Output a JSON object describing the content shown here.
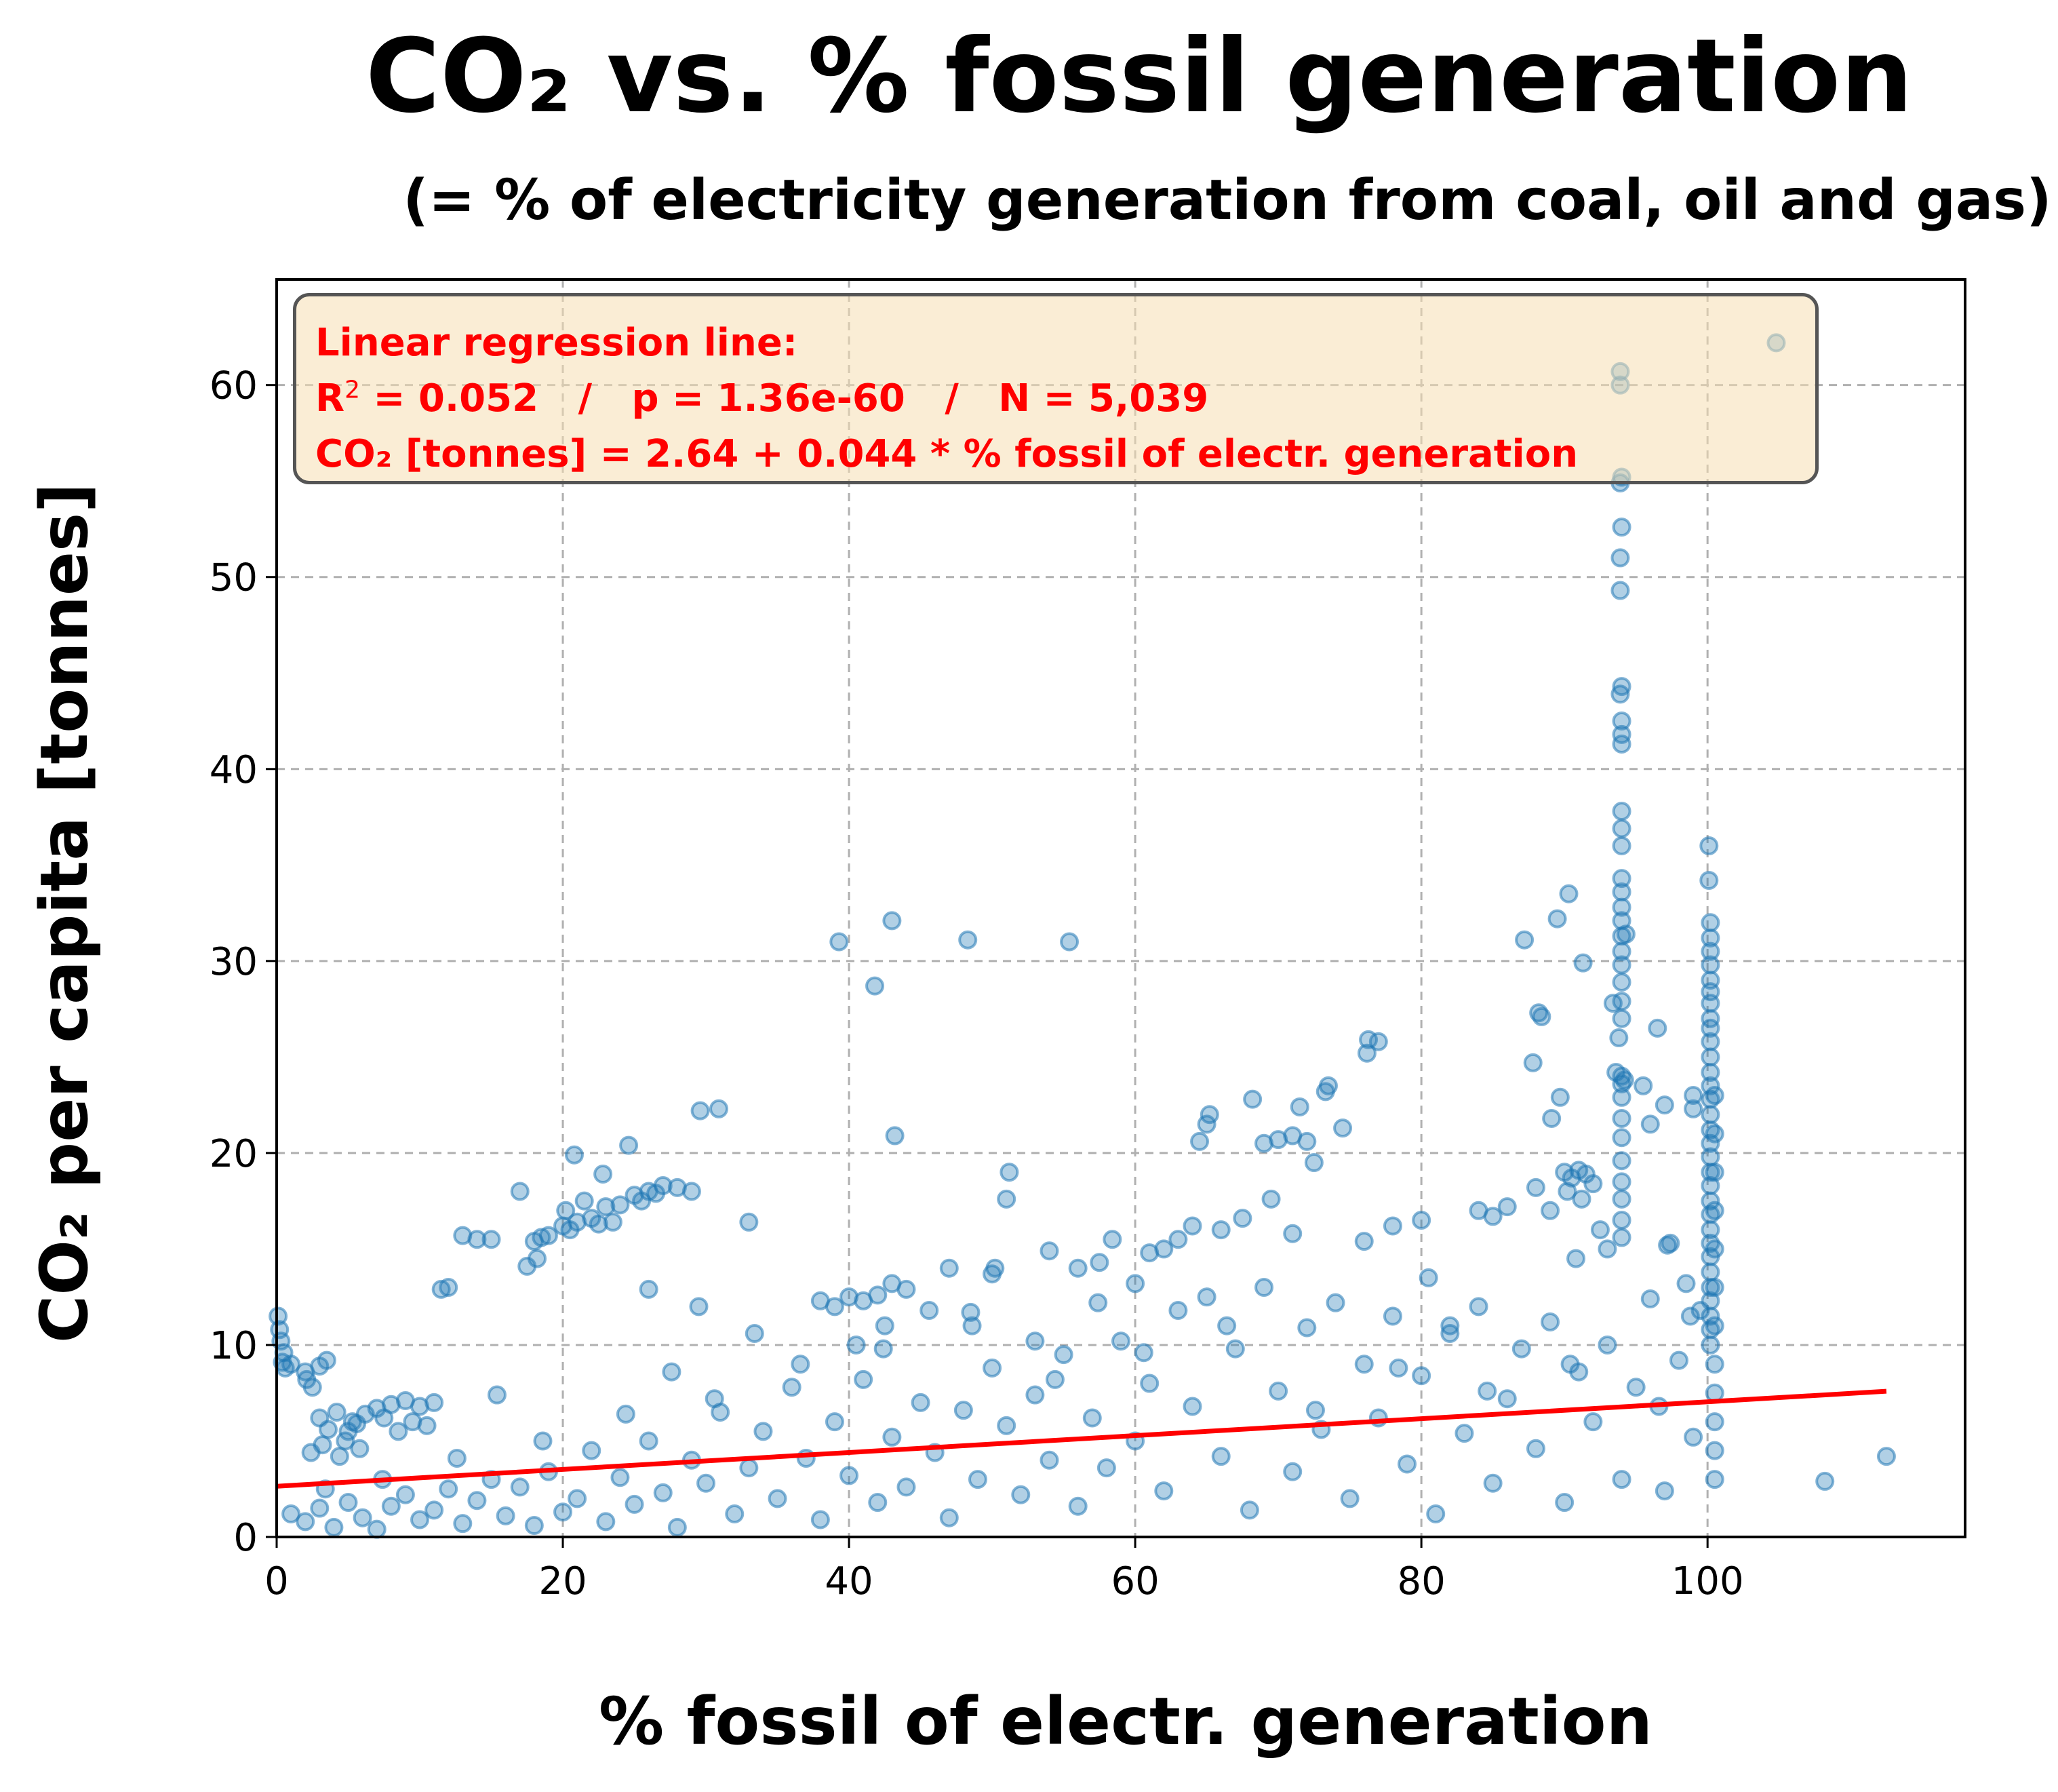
{
  "chart_data": {
    "type": "scatter",
    "title": "CO₂ vs. % fossil generation",
    "subtitle": "(= % of electricity generation from coal, oil and gas)",
    "xlabel": "% fossil of electr. generation",
    "ylabel": "CO₂ per capita [tonnes]",
    "xlim": [
      0,
      118
    ],
    "ylim": [
      0,
      65.5
    ],
    "xticks": [
      "0",
      "20",
      "40",
      "60",
      "80",
      "100"
    ],
    "yticks": [
      "0",
      "10",
      "20",
      "30",
      "40",
      "50",
      "60"
    ],
    "grid": true,
    "point_color": "#1f77b4",
    "line_color": "#ff0000",
    "annotation": {
      "line1": "Linear regression line:",
      "r2_prefix": "R",
      "r2_sup": "2",
      "line2_rest": " = 0.052   /   p = 1.36e-60   /   N = 5,039",
      "line3": "CO₂ [tonnes] = 2.64 + 0.044 * % fossil of electr. generation"
    },
    "regression": {
      "intercept": 2.64,
      "slope": 0.044,
      "x_range": [
        0,
        112.5
      ]
    },
    "points": [
      [
        0.1,
        11.5
      ],
      [
        0.2,
        10.8
      ],
      [
        0.3,
        10.2
      ],
      [
        0.5,
        9.6
      ],
      [
        0.4,
        9.1
      ],
      [
        0.6,
        8.8
      ],
      [
        1.0,
        9.0
      ],
      [
        2.0,
        8.6
      ],
      [
        2.1,
        8.2
      ],
      [
        3.0,
        8.9
      ],
      [
        3.5,
        9.2
      ],
      [
        2.5,
        7.8
      ],
      [
        3.0,
        6.2
      ],
      [
        3.6,
        5.6
      ],
      [
        4.2,
        6.5
      ],
      [
        4.8,
        5.0
      ],
      [
        5.3,
        6.0
      ],
      [
        5.8,
        4.6
      ],
      [
        4.4,
        4.2
      ],
      [
        5.0,
        5.5
      ],
      [
        6.2,
        6.4
      ],
      [
        3.2,
        4.8
      ],
      [
        2.4,
        4.4
      ],
      [
        5.6,
        5.9
      ],
      [
        7.0,
        6.7
      ],
      [
        8.0,
        6.9
      ],
      [
        9.0,
        7.1
      ],
      [
        10.0,
        6.8
      ],
      [
        11.0,
        7.0
      ],
      [
        9.5,
        6.0
      ],
      [
        8.5,
        5.5
      ],
      [
        7.5,
        6.2
      ],
      [
        10.5,
        5.8
      ],
      [
        11.5,
        12.9
      ],
      [
        12.0,
        13.0
      ],
      [
        13.0,
        15.7
      ],
      [
        14.0,
        15.5
      ],
      [
        15.0,
        15.5
      ],
      [
        17.0,
        18.0
      ],
      [
        18.0,
        15.4
      ],
      [
        18.5,
        15.6
      ],
      [
        19.0,
        15.7
      ],
      [
        17.5,
        14.1
      ],
      [
        18.2,
        14.5
      ],
      [
        20.0,
        16.2
      ],
      [
        20.5,
        16.0
      ],
      [
        21.0,
        16.4
      ],
      [
        22.0,
        16.6
      ],
      [
        23.0,
        17.2
      ],
      [
        23.5,
        16.4
      ],
      [
        20.2,
        17.0
      ],
      [
        21.5,
        17.5
      ],
      [
        22.5,
        16.3
      ],
      [
        20.8,
        19.9
      ],
      [
        22.8,
        18.9
      ],
      [
        24.6,
        20.4
      ],
      [
        24.0,
        17.3
      ],
      [
        25.0,
        17.8
      ],
      [
        26.0,
        18.0
      ],
      [
        27.0,
        18.3
      ],
      [
        28.0,
        18.2
      ],
      [
        29.0,
        18.0
      ],
      [
        25.5,
        17.5
      ],
      [
        26.5,
        17.9
      ],
      [
        29.6,
        22.2
      ],
      [
        30.9,
        22.3
      ],
      [
        33.0,
        16.4
      ],
      [
        29.5,
        12.0
      ],
      [
        26.0,
        12.9
      ],
      [
        39.3,
        31.0
      ],
      [
        41.8,
        28.7
      ],
      [
        43.0,
        32.1
      ],
      [
        48.3,
        31.1
      ],
      [
        55.4,
        31.0
      ],
      [
        43.2,
        20.9
      ],
      [
        38.0,
        12.3
      ],
      [
        39.0,
        12.0
      ],
      [
        40.0,
        12.5
      ],
      [
        41.0,
        12.3
      ],
      [
        42.0,
        12.6
      ],
      [
        43.0,
        13.2
      ],
      [
        44.0,
        12.9
      ],
      [
        40.5,
        10.0
      ],
      [
        42.5,
        11.0
      ],
      [
        50.0,
        13.7
      ],
      [
        51.0,
        17.6
      ],
      [
        51.2,
        19.0
      ],
      [
        50.2,
        14.0
      ],
      [
        48.5,
        11.7
      ],
      [
        47.0,
        14.0
      ],
      [
        53.0,
        10.2
      ],
      [
        54.0,
        14.9
      ],
      [
        56.0,
        14.0
      ],
      [
        57.5,
        14.3
      ],
      [
        58.4,
        15.5
      ],
      [
        60.0,
        13.2
      ],
      [
        61.0,
        14.8
      ],
      [
        62.0,
        15.0
      ],
      [
        63.0,
        15.5
      ],
      [
        64.0,
        16.2
      ],
      [
        64.5,
        20.6
      ],
      [
        65.0,
        21.5
      ],
      [
        65.2,
        22.0
      ],
      [
        66.0,
        16.0
      ],
      [
        67.5,
        16.6
      ],
      [
        68.2,
        22.8
      ],
      [
        69.0,
        20.5
      ],
      [
        70.0,
        20.7
      ],
      [
        71.0,
        20.9
      ],
      [
        72.0,
        20.6
      ],
      [
        72.5,
        19.5
      ],
      [
        71.5,
        22.4
      ],
      [
        73.5,
        23.5
      ],
      [
        73.3,
        23.2
      ],
      [
        74.5,
        21.3
      ],
      [
        69.5,
        17.6
      ],
      [
        71.0,
        15.8
      ],
      [
        76.3,
        25.9
      ],
      [
        77.0,
        25.8
      ],
      [
        76.2,
        25.2
      ],
      [
        78.0,
        16.2
      ],
      [
        76.0,
        15.4
      ],
      [
        80.0,
        16.5
      ],
      [
        80.5,
        13.5
      ],
      [
        82.0,
        11.0
      ],
      [
        84.0,
        17.0
      ],
      [
        85.0,
        16.7
      ],
      [
        86.0,
        17.2
      ],
      [
        87.2,
        31.1
      ],
      [
        87.8,
        24.7
      ],
      [
        88.2,
        27.3
      ],
      [
        88.4,
        27.1
      ],
      [
        89.1,
        21.8
      ],
      [
        89.7,
        22.9
      ],
      [
        89.5,
        32.2
      ],
      [
        90.3,
        33.5
      ],
      [
        91.3,
        29.9
      ],
      [
        88.0,
        18.2
      ],
      [
        89.0,
        17.0
      ],
      [
        90.0,
        19.0
      ],
      [
        90.5,
        18.7
      ],
      [
        91.0,
        19.1
      ],
      [
        91.5,
        18.9
      ],
      [
        92.0,
        18.4
      ],
      [
        90.2,
        18.0
      ],
      [
        91.2,
        17.6
      ],
      [
        92.5,
        16.0
      ],
      [
        93.0,
        15.0
      ],
      [
        90.8,
        14.5
      ],
      [
        93.9,
        60.7
      ],
      [
        93.9,
        60.0
      ],
      [
        94.0,
        55.2
      ],
      [
        93.9,
        54.9
      ],
      [
        94.0,
        52.6
      ],
      [
        93.9,
        51.0
      ],
      [
        93.9,
        49.3
      ],
      [
        94.0,
        44.3
      ],
      [
        93.9,
        43.9
      ],
      [
        94.0,
        42.5
      ],
      [
        94.0,
        41.8
      ],
      [
        94.0,
        41.3
      ],
      [
        94.0,
        37.8
      ],
      [
        94.0,
        36.9
      ],
      [
        94.0,
        36.0
      ],
      [
        94.0,
        34.3
      ],
      [
        94.0,
        33.6
      ],
      [
        94.0,
        32.8
      ],
      [
        94.0,
        32.1
      ],
      [
        94.0,
        31.3
      ],
      [
        94.0,
        30.5
      ],
      [
        94.0,
        29.8
      ],
      [
        94.0,
        28.9
      ],
      [
        94.0,
        27.9
      ],
      [
        94.0,
        27.0
      ],
      [
        93.8,
        26.0
      ],
      [
        94.0,
        24.0
      ],
      [
        94.0,
        23.6
      ],
      [
        94.0,
        22.9
      ],
      [
        94.0,
        21.8
      ],
      [
        94.0,
        20.8
      ],
      [
        94.0,
        19.6
      ],
      [
        94.0,
        18.5
      ],
      [
        94.0,
        17.6
      ],
      [
        94.0,
        16.5
      ],
      [
        94.0,
        15.6
      ],
      [
        93.4,
        27.8
      ],
      [
        93.6,
        24.2
      ],
      [
        94.3,
        31.4
      ],
      [
        94.2,
        23.8
      ],
      [
        95.5,
        23.5
      ],
      [
        96.0,
        21.5
      ],
      [
        96.5,
        26.5
      ],
      [
        97.0,
        22.5
      ],
      [
        97.4,
        15.3
      ],
      [
        97.2,
        15.2
      ],
      [
        98.5,
        13.2
      ],
      [
        99.0,
        23.0
      ],
      [
        99.0,
        22.3
      ],
      [
        98.8,
        11.5
      ],
      [
        100.1,
        36.0
      ],
      [
        100.1,
        34.2
      ],
      [
        100.2,
        32.0
      ],
      [
        100.2,
        31.2
      ],
      [
        100.2,
        30.5
      ],
      [
        100.2,
        29.8
      ],
      [
        100.2,
        29.0
      ],
      [
        100.2,
        28.4
      ],
      [
        100.2,
        27.8
      ],
      [
        100.2,
        27.0
      ],
      [
        100.2,
        26.5
      ],
      [
        100.2,
        25.8
      ],
      [
        100.2,
        25.0
      ],
      [
        100.2,
        24.2
      ],
      [
        100.2,
        23.5
      ],
      [
        100.2,
        22.8
      ],
      [
        100.2,
        22.0
      ],
      [
        100.2,
        21.2
      ],
      [
        100.2,
        20.5
      ],
      [
        100.2,
        19.8
      ],
      [
        100.2,
        19.0
      ],
      [
        100.2,
        18.3
      ],
      [
        100.2,
        17.5
      ],
      [
        100.2,
        16.8
      ],
      [
        100.2,
        16.0
      ],
      [
        100.2,
        15.3
      ],
      [
        100.2,
        14.6
      ],
      [
        100.2,
        13.8
      ],
      [
        100.2,
        13.0
      ],
      [
        100.2,
        12.3
      ],
      [
        100.2,
        11.5
      ],
      [
        100.2,
        10.8
      ],
      [
        100.2,
        10.0
      ],
      [
        100.5,
        23.0
      ],
      [
        100.5,
        21.0
      ],
      [
        100.5,
        19.0
      ],
      [
        100.5,
        17.0
      ],
      [
        100.5,
        15.0
      ],
      [
        100.5,
        13.0
      ],
      [
        100.5,
        11.0
      ],
      [
        100.5,
        9.0
      ],
      [
        100.5,
        7.5
      ],
      [
        100.5,
        6.0
      ],
      [
        100.5,
        4.5
      ],
      [
        100.5,
        3.0
      ],
      [
        104.8,
        62.2
      ],
      [
        108.2,
        2.9
      ],
      [
        112.5,
        4.2
      ],
      [
        1,
        1.2
      ],
      [
        2,
        0.8
      ],
      [
        3,
        1.5
      ],
      [
        4,
        0.5
      ],
      [
        5,
        1.8
      ],
      [
        6,
        1.0
      ],
      [
        7,
        0.4
      ],
      [
        8,
        1.6
      ],
      [
        9,
        2.2
      ],
      [
        10,
        0.9
      ],
      [
        11,
        1.4
      ],
      [
        12,
        2.5
      ],
      [
        13,
        0.7
      ],
      [
        14,
        1.9
      ],
      [
        15,
        3.0
      ],
      [
        16,
        1.1
      ],
      [
        17,
        2.6
      ],
      [
        18,
        0.6
      ],
      [
        19,
        3.4
      ],
      [
        20,
        1.3
      ],
      [
        21,
        2.0
      ],
      [
        22,
        4.5
      ],
      [
        23,
        0.8
      ],
      [
        24,
        3.1
      ],
      [
        25,
        1.7
      ],
      [
        26,
        5.0
      ],
      [
        27,
        2.3
      ],
      [
        28,
        0.5
      ],
      [
        29,
        4.0
      ],
      [
        30,
        2.8
      ],
      [
        31,
        6.5
      ],
      [
        32,
        1.2
      ],
      [
        33,
        3.6
      ],
      [
        34,
        5.5
      ],
      [
        35,
        2.0
      ],
      [
        36,
        7.8
      ],
      [
        37,
        4.1
      ],
      [
        38,
        0.9
      ],
      [
        39,
        6.0
      ],
      [
        40,
        3.2
      ],
      [
        41,
        8.2
      ],
      [
        42,
        1.8
      ],
      [
        43,
        5.2
      ],
      [
        44,
        2.6
      ],
      [
        45,
        7.0
      ],
      [
        46,
        4.4
      ],
      [
        47,
        1.0
      ],
      [
        48,
        6.6
      ],
      [
        49,
        3.0
      ],
      [
        50,
        8.8
      ],
      [
        51,
        5.8
      ],
      [
        52,
        2.2
      ],
      [
        53,
        7.4
      ],
      [
        54,
        4.0
      ],
      [
        55,
        9.5
      ],
      [
        56,
        1.6
      ],
      [
        57,
        6.2
      ],
      [
        58,
        3.6
      ],
      [
        59,
        10.2
      ],
      [
        60,
        5.0
      ],
      [
        61,
        8.0
      ],
      [
        62,
        2.4
      ],
      [
        63,
        11.8
      ],
      [
        64,
        6.8
      ],
      [
        65,
        12.5
      ],
      [
        66,
        4.2
      ],
      [
        67,
        9.8
      ],
      [
        68,
        1.4
      ],
      [
        69,
        13.0
      ],
      [
        70,
        7.6
      ],
      [
        71,
        3.4
      ],
      [
        72,
        10.9
      ],
      [
        73,
        5.6
      ],
      [
        74,
        12.2
      ],
      [
        75,
        2.0
      ],
      [
        76,
        9.0
      ],
      [
        77,
        6.2
      ],
      [
        78,
        11.5
      ],
      [
        79,
        3.8
      ],
      [
        80,
        8.4
      ],
      [
        81,
        1.2
      ],
      [
        82,
        10.6
      ],
      [
        83,
        5.4
      ],
      [
        84,
        12.0
      ],
      [
        85,
        2.8
      ],
      [
        86,
        7.2
      ],
      [
        87,
        9.8
      ],
      [
        88,
        4.6
      ],
      [
        89,
        11.2
      ],
      [
        90,
        1.8
      ],
      [
        91,
        8.6
      ],
      [
        92,
        6.0
      ],
      [
        93,
        10.0
      ],
      [
        94,
        3.0
      ],
      [
        95,
        7.8
      ],
      [
        96,
        12.4
      ],
      [
        97,
        2.4
      ],
      [
        98,
        9.2
      ],
      [
        99,
        5.2
      ],
      [
        99.5,
        11.8
      ],
      [
        3.4,
        2.5
      ],
      [
        7.4,
        3.0
      ],
      [
        12.6,
        4.1
      ],
      [
        18.6,
        5.0
      ],
      [
        24.4,
        6.4
      ],
      [
        30.6,
        7.2
      ],
      [
        36.6,
        9.0
      ],
      [
        42.4,
        9.8
      ],
      [
        48.6,
        11.0
      ],
      [
        54.4,
        8.2
      ],
      [
        60.6,
        9.6
      ],
      [
        66.4,
        11.0
      ],
      [
        72.6,
        6.6
      ],
      [
        78.4,
        8.8
      ],
      [
        84.6,
        7.6
      ],
      [
        90.4,
        9.0
      ],
      [
        96.6,
        6.8
      ],
      [
        15.4,
        7.4
      ],
      [
        27.6,
        8.6
      ],
      [
        33.4,
        10.6
      ],
      [
        45.6,
        11.8
      ],
      [
        57.4,
        12.2
      ]
    ]
  }
}
